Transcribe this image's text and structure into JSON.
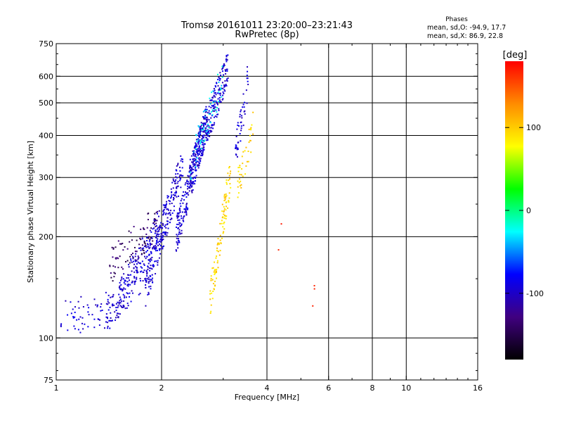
{
  "chart_data": {
    "type": "scatter",
    "title_line1": "Tromsø 20161011 23:20:00–23:21:43",
    "title_line2": "RwPretec (8p)",
    "phases": {
      "heading": "Phases",
      "line_o": "mean, sd,O: -94.9, 17.7",
      "line_x": "mean, sd,X:  86.9, 22.8"
    },
    "xlabel": "Frequency [MHz]",
    "ylabel": "Stationary phase Virtual Height [km]",
    "x_scale": "log",
    "y_scale": "log",
    "xlim": [
      1,
      16
    ],
    "ylim": [
      75,
      750
    ],
    "x_ticks": [
      1,
      2,
      4,
      6,
      8,
      10,
      16
    ],
    "x_minor_ticks": [
      3,
      5,
      7,
      9,
      11,
      12,
      13,
      14,
      15
    ],
    "x_gridlines": [
      2,
      4,
      6,
      8,
      10
    ],
    "y_ticks": [
      75,
      100,
      200,
      300,
      400,
      500,
      600,
      750
    ],
    "y_minor_ticks": [
      80,
      90,
      150,
      250,
      350,
      450,
      550,
      650,
      700
    ],
    "y_gridlines": [
      100,
      200,
      300,
      400,
      500,
      600
    ],
    "grid": true,
    "colorbar": {
      "label": "[deg]",
      "range": [
        -180,
        180
      ],
      "ticks": [
        -100,
        0,
        100
      ],
      "colors": [
        "#ff0000",
        "#ff8c00",
        "#ffff00",
        "#00ff00",
        "#00ffff",
        "#0000ff",
        "#400080",
        "#000000"
      ]
    },
    "series": [
      {
        "value_deg": -95,
        "segments": [
          {
            "f0": 1.03,
            "f1": 1.5,
            "h0": 115,
            "h1": 122,
            "n": 70
          },
          {
            "f0": 1.4,
            "f1": 1.85,
            "h0": 118,
            "h1": 165,
            "n": 90
          },
          {
            "f0": 1.5,
            "f1": 2.1,
            "h0": 130,
            "h1": 240,
            "n": 180
          },
          {
            "f0": 1.8,
            "f1": 2.3,
            "h0": 140,
            "h1": 330,
            "n": 200
          },
          {
            "f0": 2.2,
            "f1": 2.7,
            "h0": 200,
            "h1": 450,
            "n": 260
          },
          {
            "f0": 2.4,
            "f1": 3.1,
            "h0": 300,
            "h1": 640,
            "n": 260
          },
          {
            "f0": 3.25,
            "f1": 3.55,
            "h0": 350,
            "h1": 600,
            "n": 50
          }
        ]
      },
      {
        "value_deg": -140,
        "segments": [
          {
            "f0": 1.4,
            "f1": 1.95,
            "h0": 160,
            "h1": 220,
            "n": 90
          }
        ]
      },
      {
        "value_deg": -30,
        "segments": [
          {
            "f0": 2.4,
            "f1": 3.0,
            "h0": 320,
            "h1": 600,
            "n": 60
          }
        ]
      },
      {
        "value_deg": 95,
        "segments": [
          {
            "f0": 2.75,
            "f1": 3.15,
            "h0": 130,
            "h1": 310,
            "n": 110
          },
          {
            "f0": 3.3,
            "f1": 3.65,
            "h0": 280,
            "h1": 420,
            "n": 40
          }
        ]
      },
      {
        "value_deg": 170,
        "segments": [
          {
            "f0": 5.4,
            "f1": 5.5,
            "h0": 133,
            "h1": 136,
            "n": 3
          },
          {
            "f0": 4.3,
            "f1": 4.4,
            "h0": 202,
            "h1": 206,
            "n": 2
          }
        ]
      }
    ]
  }
}
